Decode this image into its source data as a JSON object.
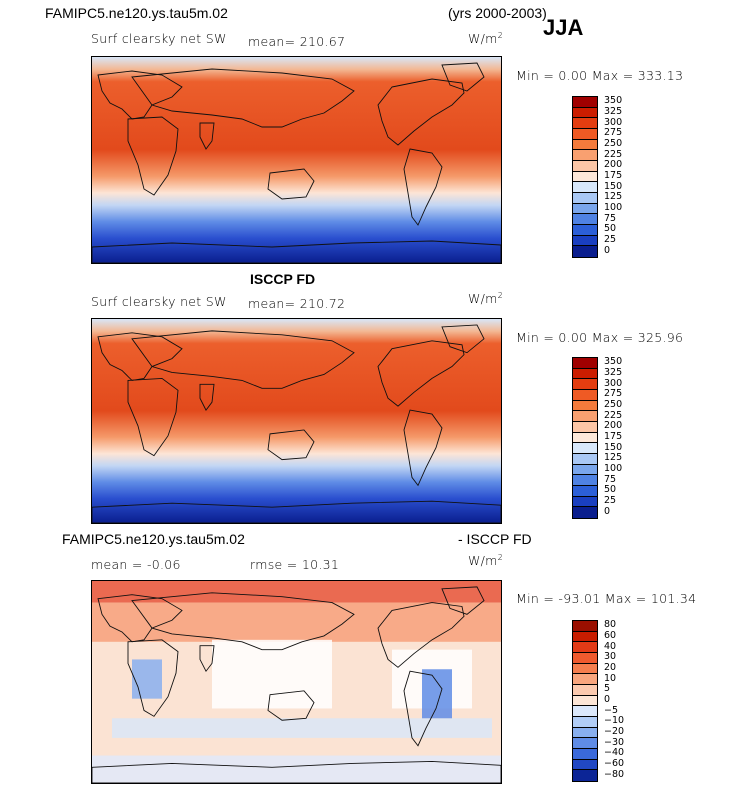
{
  "header": {
    "case": "FAMIPC5.ne120.ys.tau5m.02",
    "years": "(yrs 2000-2003)",
    "season": "JJA"
  },
  "panels": [
    {
      "id": "model",
      "heading": "",
      "var_label": "Surf clearsky net SW",
      "mean_text": "mean= 210.67",
      "rmse_text": "",
      "units_text": "W/m",
      "units_sup": "2",
      "minmax_text": "Min =   0.00 Max = 333.13",
      "levels": [
        "350",
        "325",
        "300",
        "275",
        "250",
        "225",
        "200",
        "175",
        "150",
        "125",
        "100",
        "75",
        "50",
        "25",
        "0"
      ],
      "colors": [
        "#a00000",
        "#cc1d00",
        "#e43d10",
        "#ef5a24",
        "#f47b3c",
        "#f9a070",
        "#fcc6a6",
        "#fde8d9",
        "#d8e8fb",
        "#a9c8f5",
        "#7aa6ec",
        "#4f82e3",
        "#2c5fd7",
        "#1a3fc0",
        "#0a1e8e"
      ]
    },
    {
      "id": "obs",
      "heading": "ISCCP FD",
      "var_label": "Surf clearsky net SW",
      "mean_text": "mean= 210.72",
      "rmse_text": "",
      "units_text": "W/m",
      "units_sup": "2",
      "minmax_text": "Min =   0.00 Max = 325.96",
      "levels": [
        "350",
        "325",
        "300",
        "275",
        "250",
        "225",
        "200",
        "175",
        "150",
        "125",
        "100",
        "75",
        "50",
        "25",
        "0"
      ],
      "colors": [
        "#a00000",
        "#cc1d00",
        "#e43d10",
        "#ef5a24",
        "#f47b3c",
        "#f9a070",
        "#fcc6a6",
        "#fde8d9",
        "#d8e8fb",
        "#a9c8f5",
        "#7aa6ec",
        "#4f82e3",
        "#2c5fd7",
        "#1a3fc0",
        "#0a1e8e"
      ]
    },
    {
      "id": "diff",
      "heading_left": "FAMIPC5.ne120.ys.tau5m.02",
      "heading_right": "- ISCCP FD",
      "var_label": "",
      "mean_text": "mean =   -0.06",
      "rmse_text": "rmse =  10.31",
      "units_text": "W/m",
      "units_sup": "2",
      "minmax_text": "Min = -93.01 Max = 101.34",
      "levels": [
        "80",
        "60",
        "40",
        "30",
        "20",
        "10",
        "5",
        "0",
        "−5",
        "−10",
        "−20",
        "−30",
        "−40",
        "−60",
        "−80"
      ],
      "colors": [
        "#9a0f00",
        "#c81d00",
        "#e23a16",
        "#ef5a2e",
        "#f57e4e",
        "#f9a67e",
        "#fccaaf",
        "#fde6d6",
        "#dbe8fb",
        "#b1cdf6",
        "#88afef",
        "#5f8ce6",
        "#3a69da",
        "#2148c4",
        "#0c2596"
      ]
    }
  ]
}
